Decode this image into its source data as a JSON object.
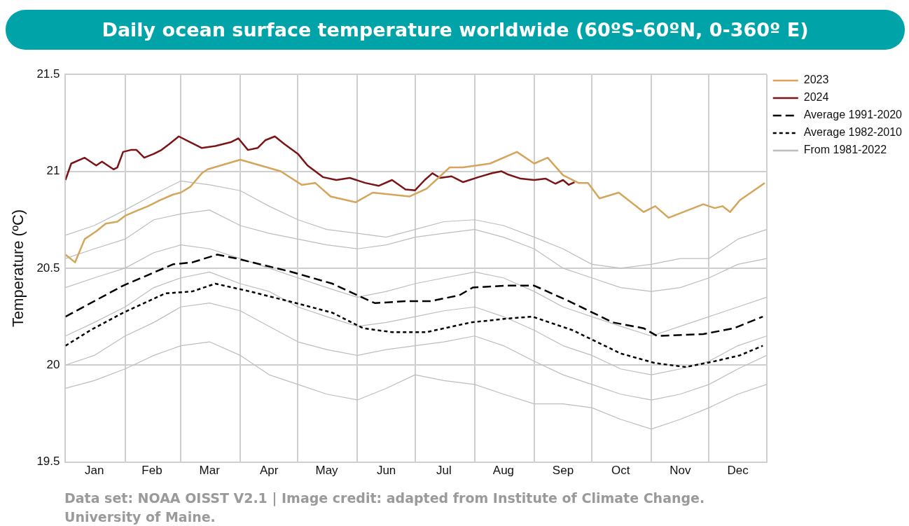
{
  "chart_data": {
    "type": "line",
    "title": "Daily ocean surface temperature worldwide (60ºS-60ºN, 0-360º E)",
    "ylabel": "Temperature (ºC)",
    "annotations": [
      "Data set: NOAA OISST V2.1 | Image credit: adapted from Institute of Climate Change. University of Maine."
    ],
    "x": [
      "--01-01",
      "--01-16",
      "--02-01",
      "--02-16",
      "--03-01",
      "--03-16",
      "--04-01",
      "--04-16",
      "--05-01",
      "--05-16",
      "--06-01",
      "--06-16",
      "--07-01",
      "--07-16",
      "--08-01",
      "--08-16",
      "--09-01",
      "--09-16",
      "--10-01",
      "--10-16",
      "--11-01",
      "--11-16",
      "--12-01",
      "--12-16",
      "--12-31"
    ],
    "xlim": [
      "--01-01",
      "--12-31"
    ],
    "xticks": [
      {
        "value": "--01-01",
        "label": null
      },
      {
        "value": "--01-16",
        "label": "Jan"
      },
      {
        "value": "--02-01",
        "label": null
      },
      {
        "value": "--02-15",
        "label": "Feb"
      },
      {
        "value": "--03-01",
        "label": null
      },
      {
        "value": "--03-16",
        "label": "Mar"
      },
      {
        "value": "--04-01",
        "label": null
      },
      {
        "value": "--04-16",
        "label": "Apr"
      },
      {
        "value": "--05-01",
        "label": null
      },
      {
        "value": "--05-16",
        "label": "May"
      },
      {
        "value": "--06-01",
        "label": null
      },
      {
        "value": "--06-16",
        "label": "Jun"
      },
      {
        "value": "--07-01",
        "label": null
      },
      {
        "value": "--07-16",
        "label": "Jul"
      },
      {
        "value": "--08-01",
        "label": null
      },
      {
        "value": "--08-16",
        "label": "Aug"
      },
      {
        "value": "--09-01",
        "label": null
      },
      {
        "value": "--09-16",
        "label": "Sep"
      },
      {
        "value": "--10-01",
        "label": null
      },
      {
        "value": "--10-16",
        "label": "Oct"
      },
      {
        "value": "--11-01",
        "label": null
      },
      {
        "value": "--11-16",
        "label": "Nov"
      },
      {
        "value": "--12-01",
        "label": null
      },
      {
        "value": "--12-16",
        "label": "Dec"
      },
      {
        "value": "--12-31",
        "label": null
      }
    ],
    "ylim": [
      19.5,
      21.5
    ],
    "yticks": [
      19.5,
      20,
      20.5,
      21,
      21.5
    ],
    "grid": true,
    "legend": "top right",
    "marker": "none",
    "series": [
      {
        "name": "2023",
        "color": "#d4a55a",
        "x": [
          "--01-01",
          "--01-06",
          "--01-11",
          "--01-17",
          "--01-22",
          "--01-28",
          "--02-01",
          "--02-08",
          "--02-13",
          "--02-19",
          "--02-26",
          "--03-01",
          "--03-06",
          "--03-12",
          "--03-15",
          "--04-01",
          "--04-22",
          "--05-03",
          "--05-10",
          "--05-18",
          "--05-31",
          "--06-09",
          "--06-28",
          "--07-07",
          "--07-19",
          "--07-26",
          "--08-09",
          "--08-23",
          "--09-01",
          "--09-08",
          "--09-16",
          "--09-24",
          "--09-29",
          "--10-05",
          "--10-15",
          "--10-28",
          "--11-03",
          "--11-10",
          "--11-28",
          "--12-04",
          "--12-08",
          "--12-12",
          "--12-17",
          "--12-30"
        ],
        "values": [
          20.57,
          20.53,
          20.65,
          20.69,
          20.73,
          20.74,
          20.77,
          20.8,
          20.82,
          20.85,
          20.88,
          20.89,
          20.92,
          20.99,
          21.01,
          21.06,
          21,
          20.93,
          20.94,
          20.87,
          20.84,
          20.89,
          20.87,
          20.91,
          21.02,
          21.02,
          21.04,
          21.1,
          21.04,
          21.07,
          20.98,
          20.94,
          20.94,
          20.86,
          20.89,
          20.79,
          20.82,
          20.76,
          20.83,
          20.81,
          20.82,
          20.79,
          20.85,
          20.94
        ]
      },
      {
        "name": "2024",
        "color": "#7a1416",
        "x": [
          "--01-01",
          "--01-04",
          "--01-11",
          "--01-17",
          "--01-20",
          "--01-26",
          "--01-28",
          "--01-31",
          "--02-04",
          "--02-07",
          "--02-11",
          "--02-16",
          "--02-20",
          "--02-24",
          "--02-29",
          "--03-06",
          "--03-12",
          "--03-19",
          "--03-27",
          "--03-31",
          "--04-05",
          "--04-10",
          "--04-14",
          "--04-19",
          "--04-24",
          "--05-01",
          "--05-06",
          "--05-14",
          "--05-21",
          "--05-28",
          "--06-05",
          "--06-12",
          "--06-19",
          "--06-26",
          "--07-01",
          "--07-06",
          "--07-10",
          "--07-14",
          "--07-20",
          "--07-26",
          "--08-03",
          "--08-10",
          "--08-15",
          "--08-18",
          "--08-25",
          "--09-01",
          "--09-07",
          "--09-12",
          "--09-16",
          "--09-19",
          "--09-22"
        ],
        "values": [
          20.955,
          21.04,
          21.07,
          21.03,
          21.05,
          21.01,
          21.02,
          21.1,
          21.11,
          21.11,
          21.07,
          21.09,
          21.11,
          21.14,
          21.18,
          21.15,
          21.12,
          21.13,
          21.15,
          21.17,
          21.11,
          21.12,
          21.16,
          21.18,
          21.14,
          21.09,
          21.03,
          20.97,
          20.955,
          20.966,
          20.94,
          20.925,
          20.955,
          20.906,
          20.902,
          20.955,
          20.99,
          20.966,
          20.974,
          20.944,
          20.97,
          20.99,
          21,
          20.985,
          20.962,
          20.955,
          20.962,
          20.936,
          20.955,
          20.93,
          20.944
        ]
      },
      {
        "name": "Average 1991-2020",
        "color": "#000000",
        "line_style": "dashed",
        "x": [
          "--01-01",
          "--01-31",
          "--02-26",
          "--03-07",
          "--03-20",
          "--03-30",
          "--04-28",
          "--05-19",
          "--06-01",
          "--06-10",
          "--06-27",
          "--07-09",
          "--07-24",
          "--07-31",
          "--08-18",
          "--09-01",
          "--09-19",
          "--10-12",
          "--10-28",
          "--11-04",
          "--11-28",
          "--12-14",
          "--12-29"
        ],
        "values": [
          20.25,
          20.41,
          20.52,
          20.53,
          20.57,
          20.55,
          20.48,
          20.42,
          20.36,
          20.32,
          20.33,
          20.33,
          20.36,
          20.4,
          20.41,
          20.41,
          20.33,
          20.22,
          20.19,
          20.15,
          20.16,
          20.19,
          20.25
        ]
      },
      {
        "name": "Average 1982-2010",
        "color": "#000000",
        "line_style": "dotted",
        "x": [
          "--01-01",
          "--01-14",
          "--01-31",
          "--02-22",
          "--03-07",
          "--03-19",
          "--04-06",
          "--04-30",
          "--05-19",
          "--06-04",
          "--06-19",
          "--07-07",
          "--07-30",
          "--08-18",
          "--08-31",
          "--09-21",
          "--10-16",
          "--11-03",
          "--11-19",
          "--12-04",
          "--12-17",
          "--12-29"
        ],
        "values": [
          20.1,
          20.18,
          20.27,
          20.37,
          20.38,
          20.42,
          20.38,
          20.32,
          20.27,
          20.19,
          20.17,
          20.17,
          20.22,
          20.24,
          20.25,
          20.18,
          20.06,
          20.01,
          19.99,
          20.02,
          20.05,
          20.1
        ]
      },
      {
        "name": "From 1981-2022",
        "color": "#bdbdbd",
        "values": [
          20.67,
          20.72,
          20.8,
          20.88,
          20.95,
          20.93,
          20.9,
          20.82,
          20.75,
          20.7,
          20.68,
          20.66,
          20.7,
          20.74,
          20.75,
          20.72,
          20.66,
          20.6,
          20.52,
          20.5,
          20.52,
          20.55,
          20.55,
          20.65,
          20.7
        ]
      },
      {
        "color": "#bdbdbd",
        "values": [
          20.55,
          20.6,
          20.65,
          20.75,
          20.78,
          20.8,
          20.72,
          20.68,
          20.65,
          20.62,
          20.6,
          20.62,
          20.66,
          20.68,
          20.7,
          20.66,
          20.6,
          20.5,
          20.45,
          20.4,
          20.38,
          20.4,
          20.45,
          20.52,
          20.55
        ]
      },
      {
        "color": "#bdbdbd",
        "values": [
          20.4,
          20.45,
          20.5,
          20.58,
          20.62,
          20.6,
          20.55,
          20.5,
          20.45,
          20.4,
          20.35,
          20.38,
          20.42,
          20.45,
          20.48,
          20.45,
          20.38,
          20.3,
          20.25,
          20.2,
          20.15,
          20.2,
          20.25,
          20.3,
          20.35
        ]
      },
      {
        "color": "#bdbdbd",
        "values": [
          20.15,
          20.22,
          20.3,
          20.4,
          20.45,
          20.48,
          20.42,
          20.38,
          20.3,
          20.25,
          20.2,
          20.22,
          20.25,
          20.28,
          20.3,
          20.25,
          20.18,
          20.1,
          20.05,
          19.98,
          19.95,
          19.98,
          20.02,
          20.1,
          20.15
        ]
      },
      {
        "color": "#bdbdbd",
        "values": [
          20,
          20.05,
          20.15,
          20.22,
          20.3,
          20.32,
          20.28,
          20.2,
          20.12,
          20.08,
          20.05,
          20.08,
          20.1,
          20.12,
          20.15,
          20.1,
          20.02,
          19.95,
          19.9,
          19.85,
          19.82,
          19.85,
          19.9,
          19.98,
          20.05
        ]
      },
      {
        "color": "#bdbdbd",
        "values": [
          19.88,
          19.92,
          19.98,
          20.05,
          20.1,
          20.12,
          20.05,
          19.95,
          19.9,
          19.85,
          19.82,
          19.88,
          19.95,
          19.92,
          19.9,
          19.85,
          19.8,
          19.8,
          19.78,
          19.72,
          19.67,
          19.72,
          19.78,
          19.85,
          19.9
        ]
      }
    ]
  }
}
